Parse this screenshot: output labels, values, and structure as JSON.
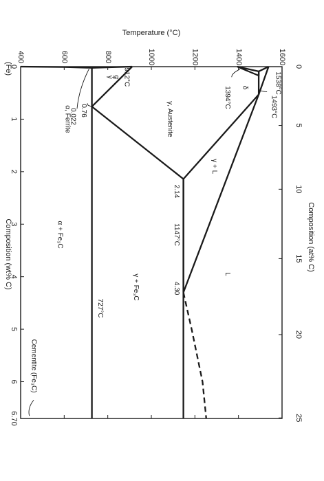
{
  "chart_data": {
    "type": "line",
    "title": "",
    "orientation": "rotated-90-clockwise",
    "x_axis": {
      "label": "Composition (wt% C)",
      "range": [
        0,
        6.7
      ],
      "ticks": [
        "0",
        "1",
        "2",
        "3",
        "4",
        "5",
        "6",
        "6.70"
      ],
      "origin_label": "(Fe)"
    },
    "x_axis_top": {
      "label": "Composition (at% C)",
      "ticks": [
        "0",
        "5",
        "10",
        "15",
        "20",
        "25"
      ]
    },
    "y_axis": {
      "label": "Temperature (°C)",
      "range": [
        400,
        1600
      ],
      "ticks": [
        "400",
        "600",
        "800",
        "1000",
        "1200",
        "1400",
        "1600"
      ]
    },
    "series": [
      {
        "style": "solid",
        "points": [
          [
            0,
            1538
          ],
          [
            0.09,
            1493
          ],
          [
            0.53,
            1493
          ],
          [
            2.14,
            1147
          ],
          [
            4.3,
            1147
          ]
        ]
      },
      {
        "style": "solid",
        "points": [
          [
            0.53,
            1493
          ],
          [
            4.3,
            1147
          ]
        ]
      },
      {
        "style": "solid",
        "points": [
          [
            0,
            1538
          ],
          [
            0.53,
            1493
          ]
        ]
      },
      {
        "style": "solid",
        "points": [
          [
            0,
            1394
          ],
          [
            0.09,
            1493
          ],
          [
            0.17,
            1493
          ],
          [
            0,
            1394
          ]
        ]
      },
      {
        "style": "solid",
        "points": [
          [
            0,
            912
          ],
          [
            0.76,
            727
          ],
          [
            2.14,
            1147
          ]
        ]
      },
      {
        "style": "solid",
        "points": [
          [
            0,
            912
          ],
          [
            0.022,
            727
          ]
        ]
      },
      {
        "style": "solid",
        "points": [
          [
            0,
            400
          ],
          [
            0.008,
            600
          ],
          [
            0.022,
            727
          ]
        ]
      },
      {
        "style": "solid",
        "points": [
          [
            0.022,
            727
          ],
          [
            6.7,
            727
          ]
        ]
      },
      {
        "style": "solid",
        "points": [
          [
            2.14,
            1147
          ],
          [
            6.7,
            1147
          ]
        ]
      },
      {
        "style": "dashed",
        "points": [
          [
            4.3,
            1147
          ],
          [
            5.0,
            1185
          ],
          [
            5.5,
            1210
          ],
          [
            6.0,
            1235
          ],
          [
            6.7,
            1252
          ]
        ]
      }
    ],
    "annotations": {
      "t1538": "1538°C",
      "t1493": "1493°C",
      "t1394": "1394°C",
      "t912": "912°C",
      "t1147": "1147°C",
      "t727": "727°C",
      "c214": "2.14",
      "c430": "4.30",
      "c076": "0.76",
      "c0022": "0.022"
    },
    "regions": {
      "L": "L",
      "gammaL": "γ + L",
      "austenite": "γ, Austenite",
      "delta": "δ",
      "alpha_ferrite": "α, Ferrite",
      "alpha_gamma": [
        "α",
        "+",
        "γ"
      ],
      "gamma_fe3c": "γ + Fe₃C",
      "alpha_fe3c": "α + Fe₃C",
      "cementite": "Cementite (Fe₃C)"
    }
  }
}
